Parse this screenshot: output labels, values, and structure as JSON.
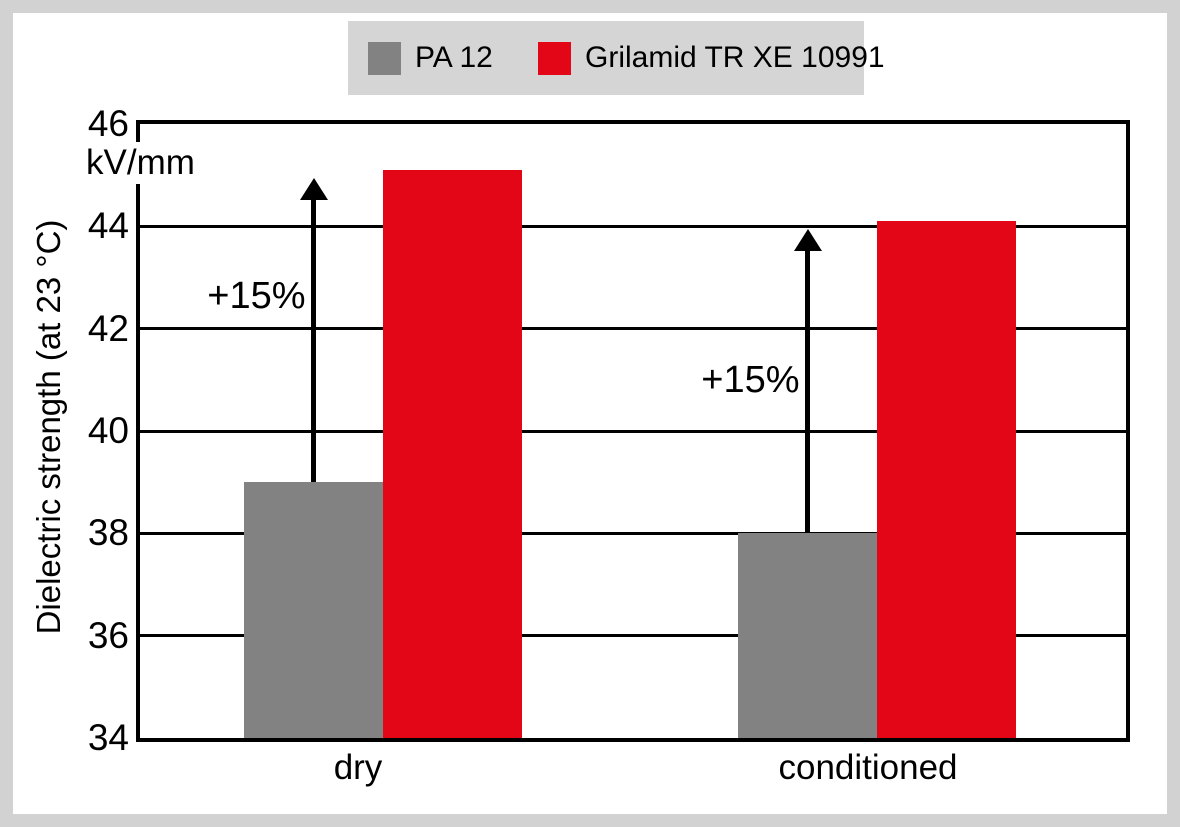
{
  "page": {
    "background_color": "#d2d2d2",
    "panel_color": "#ffffff"
  },
  "legend": {
    "background_color": "#d5d5d5",
    "items": [
      {
        "label": "PA 12",
        "color": "#828282"
      },
      {
        "label": "Grilamid TR XE 10991",
        "color": "#e30617"
      }
    ]
  },
  "chart_data": {
    "type": "bar",
    "categories": [
      "dry",
      "conditioned"
    ],
    "series": [
      {
        "name": "PA 12",
        "color": "#828282",
        "values": [
          39.0,
          38.0
        ]
      },
      {
        "name": "Grilamid TR XE 10991",
        "color": "#e30617",
        "values": [
          45.1,
          44.1
        ]
      }
    ],
    "annotations": [
      {
        "text": "+15%",
        "category": "dry"
      },
      {
        "text": "+15%",
        "category": "conditioned"
      }
    ],
    "title": "",
    "xlabel": "",
    "ylabel": "Dielectric strength (at 23 °C)",
    "unit_label": "kV/mm",
    "ylim": [
      34,
      46
    ],
    "yticks": [
      46,
      44,
      42,
      40,
      38,
      36,
      34
    ],
    "grid": true,
    "grid_color": "#000000",
    "legend_position": "top-center",
    "arrow_color": "#000000"
  }
}
